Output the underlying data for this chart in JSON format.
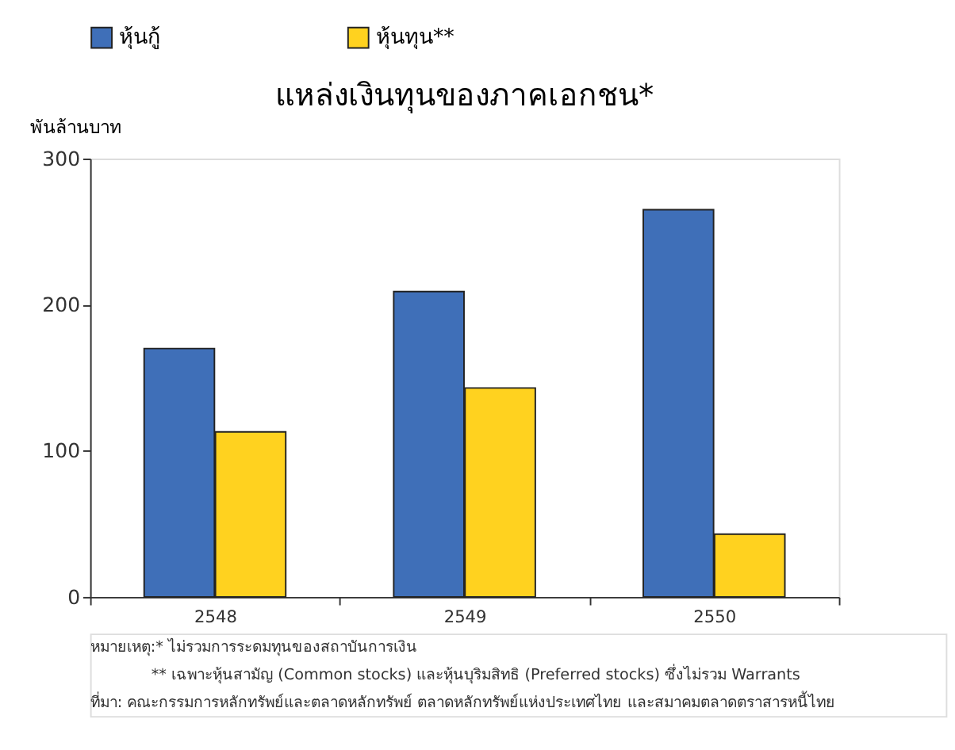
{
  "chart_data": {
    "type": "bar",
    "title": "แหล่งเงินทุนของภาคเอกชน*",
    "ylabel": "พันล้านบาท",
    "categories": [
      "2548",
      "2549",
      "2550"
    ],
    "series": [
      {
        "name": "หุ้นกู้",
        "color": "#3f6fb8",
        "values": [
          170,
          209,
          265
        ]
      },
      {
        "name": "หุ้นทุน**",
        "color": "#ffd21f",
        "values": [
          113,
          143,
          43
        ]
      }
    ],
    "ylim": [
      0,
      300
    ],
    "yticks": [
      0,
      100,
      200,
      300
    ],
    "grid": false,
    "legend": "top",
    "annotations": [
      "หมายเหตุ:* ไม่รวมการระดมทุนของสถาบันการเงิน",
      "** เฉพาะหุ้นสามัญ (Common stocks) และหุ้นบุริมสิทธิ (Preferred stocks) ซึ่งไม่รวม Warrants",
      "ที่มา: คณะกรรมการหลักทรัพย์และตลาดหลักทรัพย์ ตลาดหลักทรัพย์แห่งประเทศไทย และสมาคมตลาดตราสารหนี้ไทย"
    ]
  }
}
